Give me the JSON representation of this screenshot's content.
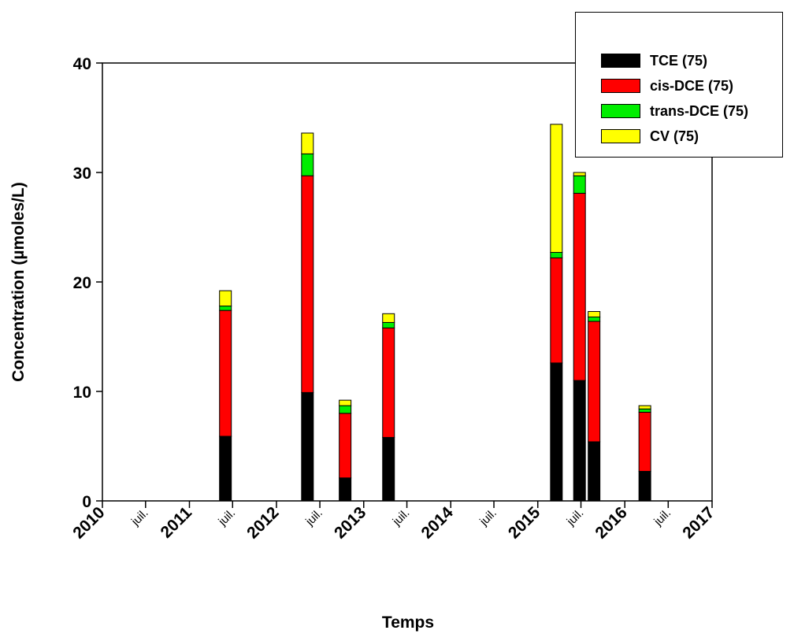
{
  "chart_data": {
    "type": "bar",
    "stacked": true,
    "title": "",
    "xlabel": "Temps",
    "ylabel": "Concentration (µmoles/L)",
    "ylim": [
      0,
      40
    ],
    "yticks": [
      "0",
      "10",
      "20",
      "30",
      "40"
    ],
    "xlim": [
      "2010-01-01",
      "2017-01-01"
    ],
    "xtick_labels": [
      {
        "date": "2010-01-01",
        "label": "2010",
        "major": true
      },
      {
        "date": "2010-07-01",
        "label": "juil.",
        "major": false
      },
      {
        "date": "2011-01-01",
        "label": "2011",
        "major": true
      },
      {
        "date": "2011-07-01",
        "label": "juil.",
        "major": false
      },
      {
        "date": "2012-01-01",
        "label": "2012",
        "major": true
      },
      {
        "date": "2012-07-01",
        "label": "juil.",
        "major": false
      },
      {
        "date": "2013-01-01",
        "label": "2013",
        "major": true
      },
      {
        "date": "2013-07-01",
        "label": "juil.",
        "major": false
      },
      {
        "date": "2014-01-01",
        "label": "2014",
        "major": true
      },
      {
        "date": "2014-07-01",
        "label": "juil.",
        "major": false
      },
      {
        "date": "2015-01-01",
        "label": "2015",
        "major": true
      },
      {
        "date": "2015-07-01",
        "label": "juil.",
        "major": false
      },
      {
        "date": "2016-01-01",
        "label": "2016",
        "major": true
      },
      {
        "date": "2016-07-01",
        "label": "juil.",
        "major": false
      },
      {
        "date": "2017-01-01",
        "label": "2017",
        "major": true
      }
    ],
    "grid": false,
    "legend_position": "top-right",
    "x": [
      "2011-06-01",
      "2012-05-10",
      "2012-10-15",
      "2013-04-15",
      "2015-03-20",
      "2015-06-25",
      "2015-08-25",
      "2016-03-25"
    ],
    "series": [
      {
        "name": "TCE (75)",
        "color": "#000000",
        "values": [
          5.9,
          9.9,
          2.1,
          5.8,
          12.6,
          11.0,
          5.4,
          2.7
        ]
      },
      {
        "name": "cis-DCE (75)",
        "color": "#ff0000",
        "values": [
          11.5,
          19.8,
          5.9,
          10.0,
          9.6,
          17.1,
          11.0,
          5.4
        ]
      },
      {
        "name": "trans-DCE (75)",
        "color": "#00ee00",
        "values": [
          0.4,
          2.0,
          0.7,
          0.5,
          0.5,
          1.6,
          0.4,
          0.3
        ]
      },
      {
        "name": "CV (75)",
        "color": "#ffff00",
        "values": [
          1.4,
          1.9,
          0.5,
          0.8,
          11.7,
          0.3,
          0.5,
          0.3
        ]
      }
    ]
  }
}
